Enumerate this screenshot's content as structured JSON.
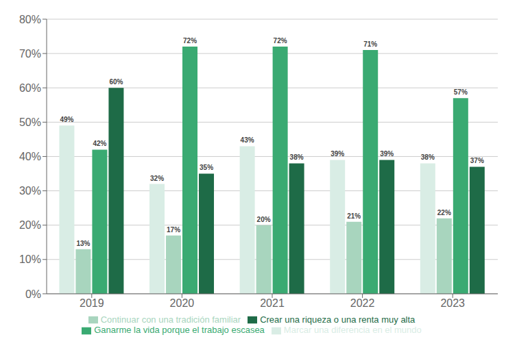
{
  "chart_data": {
    "type": "bar",
    "categories": [
      "2019",
      "2020",
      "2021",
      "2022",
      "2023"
    ],
    "series": [
      {
        "name": "Marcar una diferencia en el mundo",
        "color": "#d9ede5",
        "values": [
          49,
          32,
          43,
          39,
          38
        ],
        "value_labels": [
          "49%",
          "32%",
          "43%",
          "39%",
          "38%"
        ]
      },
      {
        "name": "Continuar con una tradición familiar",
        "color": "#a8d5be",
        "values": [
          13,
          17,
          20,
          21,
          22
        ],
        "value_labels": [
          "13%",
          "17%",
          "20%",
          "21%",
          "22%"
        ]
      },
      {
        "name": "Ganarme la vida porque el trabajo escasea",
        "color": "#3aaa72",
        "values": [
          42,
          72,
          72,
          71,
          57
        ],
        "value_labels": [
          "42%",
          "72%",
          "72%",
          "71%",
          "57%"
        ]
      },
      {
        "name": "Crear una riqueza o una renta muy alta",
        "color": "#1e6b47",
        "values": [
          60,
          35,
          38,
          39,
          37
        ],
        "value_labels": [
          "60%",
          "35%",
          "38%",
          "39%",
          "37%"
        ]
      }
    ],
    "ylim": [
      0,
      80
    ],
    "yticks": [
      {
        "value": 0,
        "label": "0%"
      },
      {
        "value": 10,
        "label": "10%"
      },
      {
        "value": 20,
        "label": "20%"
      },
      {
        "value": 30,
        "label": "30%"
      },
      {
        "value": 40,
        "label": "40%"
      },
      {
        "value": 50,
        "label": "50%"
      },
      {
        "value": 60,
        "label": "60%"
      },
      {
        "value": 70,
        "label": "70%"
      },
      {
        "value": 80,
        "label": "80%"
      }
    ],
    "grid": true,
    "data_labels": true,
    "legend": "bottom"
  }
}
